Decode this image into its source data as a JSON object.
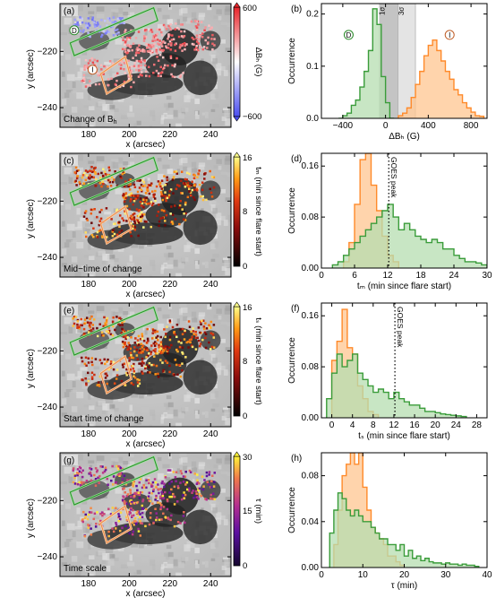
{
  "panels": [
    {
      "id": "a",
      "label": "(a)",
      "type": "map",
      "corner_label": "Change of B",
      "corner_sub": "h",
      "xlabel": "x (arcsec)",
      "ylabel": "y (arcsec)",
      "xticks": [
        "180",
        "200",
        "220",
        "240"
      ],
      "yticks": [
        "−220",
        "−240"
      ],
      "cbar": {
        "top": "600",
        "bottom": "−600",
        "label": "ΔBₕ (G)",
        "scheme": "diverging"
      },
      "markers": [
        "D",
        "I"
      ]
    },
    {
      "id": "c",
      "label": "(c)",
      "type": "map",
      "corner_label": "Mid−time of change",
      "corner_sub": "",
      "xlabel": "x (arcsec)",
      "ylabel": "y (arcsec)",
      "xticks": [
        "180",
        "200",
        "220",
        "240"
      ],
      "yticks": [
        "−220",
        "−240"
      ],
      "cbar": {
        "top": "16",
        "mid": "8",
        "bottom": "0",
        "label": "tₘ (min since flare start)",
        "scheme": "hot"
      },
      "markers": []
    },
    {
      "id": "e",
      "label": "(e)",
      "type": "map",
      "corner_label": "Start time of change",
      "corner_sub": "",
      "xlabel": "x (arcsec)",
      "ylabel": "y (arcsec)",
      "xticks": [
        "180",
        "200",
        "220",
        "240"
      ],
      "yticks": [
        "−220",
        "−240"
      ],
      "cbar": {
        "top": "16",
        "mid": "8",
        "bottom": "0",
        "label": "tₛ (min since flare start)",
        "scheme": "hot"
      },
      "markers": []
    },
    {
      "id": "g",
      "label": "(g)",
      "type": "map",
      "corner_label": "Time scale",
      "corner_sub": "",
      "xlabel": "x (arcsec)",
      "ylabel": "y (arcsec)",
      "xticks": [
        "180",
        "200",
        "220",
        "240"
      ],
      "yticks": [
        "−220",
        "−240"
      ],
      "cbar": {
        "top": "30",
        "mid": "15",
        "bottom": "0",
        "label": "τ (min)",
        "scheme": "plasma"
      },
      "markers": []
    }
  ],
  "chart_data": [
    {
      "panel": "(b)",
      "type": "area",
      "xlabel": "ΔBₕ (G)",
      "ylabel": "Occurrence",
      "xlim": [
        -600,
        950
      ],
      "ylim": [
        0,
        0.22
      ],
      "xticks": [
        -400,
        0,
        400,
        800
      ],
      "yticks": [
        0.0,
        0.1,
        0.2
      ],
      "ytick_labels": [
        "0.0",
        "0.1",
        "0.2"
      ],
      "sigma_bands": [
        {
          "label": "1σ",
          "from": -60,
          "to": 120,
          "color": "#c4c4c4"
        },
        {
          "label": "3σ",
          "from": 120,
          "to": 280,
          "color": "#e4e4e4"
        }
      ],
      "series": [
        {
          "name": "D",
          "color": "#3a9c3a",
          "fill": "#b6deb0",
          "bins": [
            -440,
            -400,
            -360,
            -320,
            -280,
            -240,
            -200,
            -160,
            -120,
            -80,
            -40,
            0,
            40,
            80
          ],
          "values": [
            0.0,
            0.005,
            0.01,
            0.025,
            0.035,
            0.06,
            0.09,
            0.13,
            0.21,
            0.18,
            0.08,
            0.03,
            0.0
          ]
        },
        {
          "name": "I",
          "color": "#ff8a2a",
          "fill": "#ffc690",
          "bins": [
            120,
            160,
            200,
            240,
            280,
            320,
            360,
            400,
            440,
            480,
            520,
            560,
            600,
            640,
            680,
            720,
            760,
            800,
            840,
            880,
            920
          ],
          "values": [
            0.005,
            0.01,
            0.02,
            0.04,
            0.065,
            0.09,
            0.12,
            0.14,
            0.15,
            0.13,
            0.11,
            0.09,
            0.075,
            0.055,
            0.045,
            0.03,
            0.02,
            0.012,
            0.005,
            0.004
          ]
        }
      ],
      "annotations": []
    },
    {
      "panel": "(d)",
      "type": "area",
      "xlabel": "tₘ (min since flare start)",
      "ylabel": "Occurrence",
      "xlim": [
        0,
        30
      ],
      "ylim": [
        0,
        0.18
      ],
      "xticks": [
        0,
        6,
        12,
        18,
        24,
        30
      ],
      "yticks": [
        0.0,
        0.08,
        0.16
      ],
      "ytick_labels": [
        "0.00",
        "0.08",
        "0.16"
      ],
      "series": [
        {
          "name": "orange",
          "color": "#ff8a2a",
          "fill": "#ffc690",
          "bins": [
            4,
            5,
            6,
            7,
            8,
            9,
            10,
            11,
            12,
            13,
            14
          ],
          "values": [
            0.01,
            0.04,
            0.1,
            0.17,
            0.18,
            0.13,
            0.09,
            0.05,
            0.02,
            0.01
          ]
        },
        {
          "name": "green",
          "color": "#3a9c3a",
          "fill": "#b6deb0",
          "bins": [
            2,
            3,
            4,
            5,
            6,
            7,
            8,
            9,
            10,
            11,
            12,
            13,
            14,
            15,
            16,
            17,
            18,
            19,
            20,
            21,
            22,
            23,
            24,
            25,
            26,
            27,
            28,
            29,
            30
          ],
          "values": [
            0.005,
            0.01,
            0.02,
            0.03,
            0.04,
            0.05,
            0.06,
            0.07,
            0.08,
            0.09,
            0.1,
            0.08,
            0.06,
            0.07,
            0.06,
            0.05,
            0.045,
            0.04,
            0.045,
            0.04,
            0.03,
            0.03,
            0.02,
            0.015,
            0.01,
            0.01,
            0.008,
            0.005
          ]
        }
      ],
      "annotations": [
        {
          "type": "vline",
          "x": 12.2,
          "text": "GOES peak"
        }
      ]
    },
    {
      "panel": "(f)",
      "type": "area",
      "xlabel": "tₛ (min since flare start)",
      "ylabel": "Occurrence",
      "xlim": [
        -2,
        30
      ],
      "ylim": [
        0,
        0.18
      ],
      "xticks": [
        0,
        4,
        8,
        12,
        16,
        20,
        24,
        28
      ],
      "yticks": [
        0.0,
        0.08,
        0.16
      ],
      "ytick_labels": [
        "0.00",
        "0.08",
        "0.16"
      ],
      "series": [
        {
          "name": "orange",
          "color": "#ff8a2a",
          "fill": "#ffc690",
          "bins": [
            0,
            1,
            2,
            3,
            4,
            5,
            6,
            7,
            8,
            9
          ],
          "values": [
            0.09,
            0.12,
            0.17,
            0.11,
            0.1,
            0.05,
            0.03,
            0.01,
            0.005
          ]
        },
        {
          "name": "green",
          "color": "#3a9c3a",
          "fill": "#b6deb0",
          "bins": [
            -1,
            0,
            1,
            2,
            3,
            4,
            5,
            6,
            7,
            8,
            9,
            10,
            11,
            12,
            13,
            14,
            15,
            16,
            17,
            18,
            19,
            20,
            21,
            22,
            23,
            24,
            25,
            26
          ],
          "values": [
            0.03,
            0.07,
            0.1,
            0.08,
            0.09,
            0.1,
            0.07,
            0.06,
            0.05,
            0.04,
            0.045,
            0.04,
            0.03,
            0.04,
            0.03,
            0.025,
            0.02,
            0.02,
            0.015,
            0.01,
            0.01,
            0.008,
            0.006,
            0.005,
            0.004,
            0.003,
            0.002
          ]
        }
      ],
      "annotations": [
        {
          "type": "vline",
          "x": 12.2,
          "text": "GOES peak"
        }
      ]
    },
    {
      "panel": "(h)",
      "type": "area",
      "xlabel": "τ (min)",
      "ylabel": "Occurrence",
      "xlim": [
        0,
        40
      ],
      "ylim": [
        0,
        0.1
      ],
      "xticks": [
        0,
        10,
        20,
        30,
        40
      ],
      "yticks": [
        0.0,
        0.04,
        0.08
      ],
      "ytick_labels": [
        "0.00",
        "0.04",
        "0.08"
      ],
      "series": [
        {
          "name": "orange",
          "color": "#ff8a2a",
          "fill": "#ffc690",
          "bins": [
            3,
            4,
            5,
            6,
            7,
            8,
            9,
            10,
            11,
            12,
            13,
            14,
            15,
            16,
            17,
            18,
            19,
            20
          ],
          "values": [
            0.02,
            0.05,
            0.08,
            0.09,
            0.1,
            0.09,
            0.1,
            0.07,
            0.05,
            0.035,
            0.03,
            0.025,
            0.02,
            0.01,
            0.01,
            0.005,
            0.002
          ]
        },
        {
          "name": "green",
          "color": "#3a9c3a",
          "fill": "#b6deb0",
          "bins": [
            2,
            3,
            4,
            5,
            6,
            7,
            8,
            9,
            10,
            11,
            12,
            13,
            14,
            15,
            16,
            17,
            18,
            19,
            20,
            21,
            22,
            23,
            24,
            25,
            26,
            27,
            28,
            29,
            30,
            31,
            32,
            33,
            34,
            35,
            36,
            37,
            38
          ],
          "values": [
            0.03,
            0.05,
            0.065,
            0.06,
            0.05,
            0.045,
            0.05,
            0.045,
            0.04,
            0.04,
            0.035,
            0.03,
            0.025,
            0.025,
            0.02,
            0.02,
            0.015,
            0.02,
            0.01,
            0.015,
            0.008,
            0.01,
            0.006,
            0.008,
            0.005,
            0.004,
            0.004,
            0.003,
            0.004,
            0.003,
            0.003,
            0.002,
            0.003,
            0.002,
            0.002,
            0.001
          ]
        }
      ],
      "annotations": []
    }
  ]
}
